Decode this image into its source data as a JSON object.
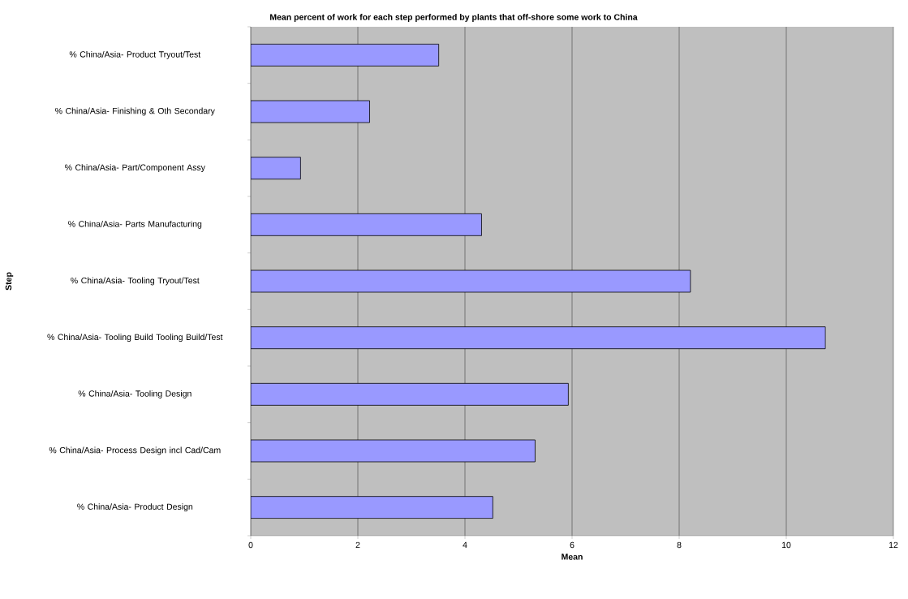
{
  "chart_data": {
    "type": "bar",
    "orientation": "horizontal",
    "title": "Mean percent of work for each step performed by plants that off-shore some work to China",
    "xlabel": "Mean",
    "ylabel": "Step",
    "categories": [
      "% China/Asia- Product Tryout/Test",
      "% China/Asia- Finishing & Oth Secondary",
      "% China/Asia- Part/Component Assy",
      "% China/Asia- Parts Manufacturing",
      "% China/Asia- Tooling Tryout/Test",
      "% China/Asia- Tooling Build Tooling Build/Test",
      "% China/Asia- Tooling Design",
      "% China/Asia- Process Design incl Cad/Cam",
      "% China/Asia- Product Design"
    ],
    "values": [
      3.51,
      2.22,
      0.93,
      4.31,
      8.21,
      10.73,
      5.93,
      5.31,
      4.52
    ],
    "color": "#9999ff",
    "xlim": [
      0,
      12
    ],
    "xticks": [
      0,
      2,
      4,
      6,
      8,
      10,
      12
    ],
    "grid": "x"
  }
}
